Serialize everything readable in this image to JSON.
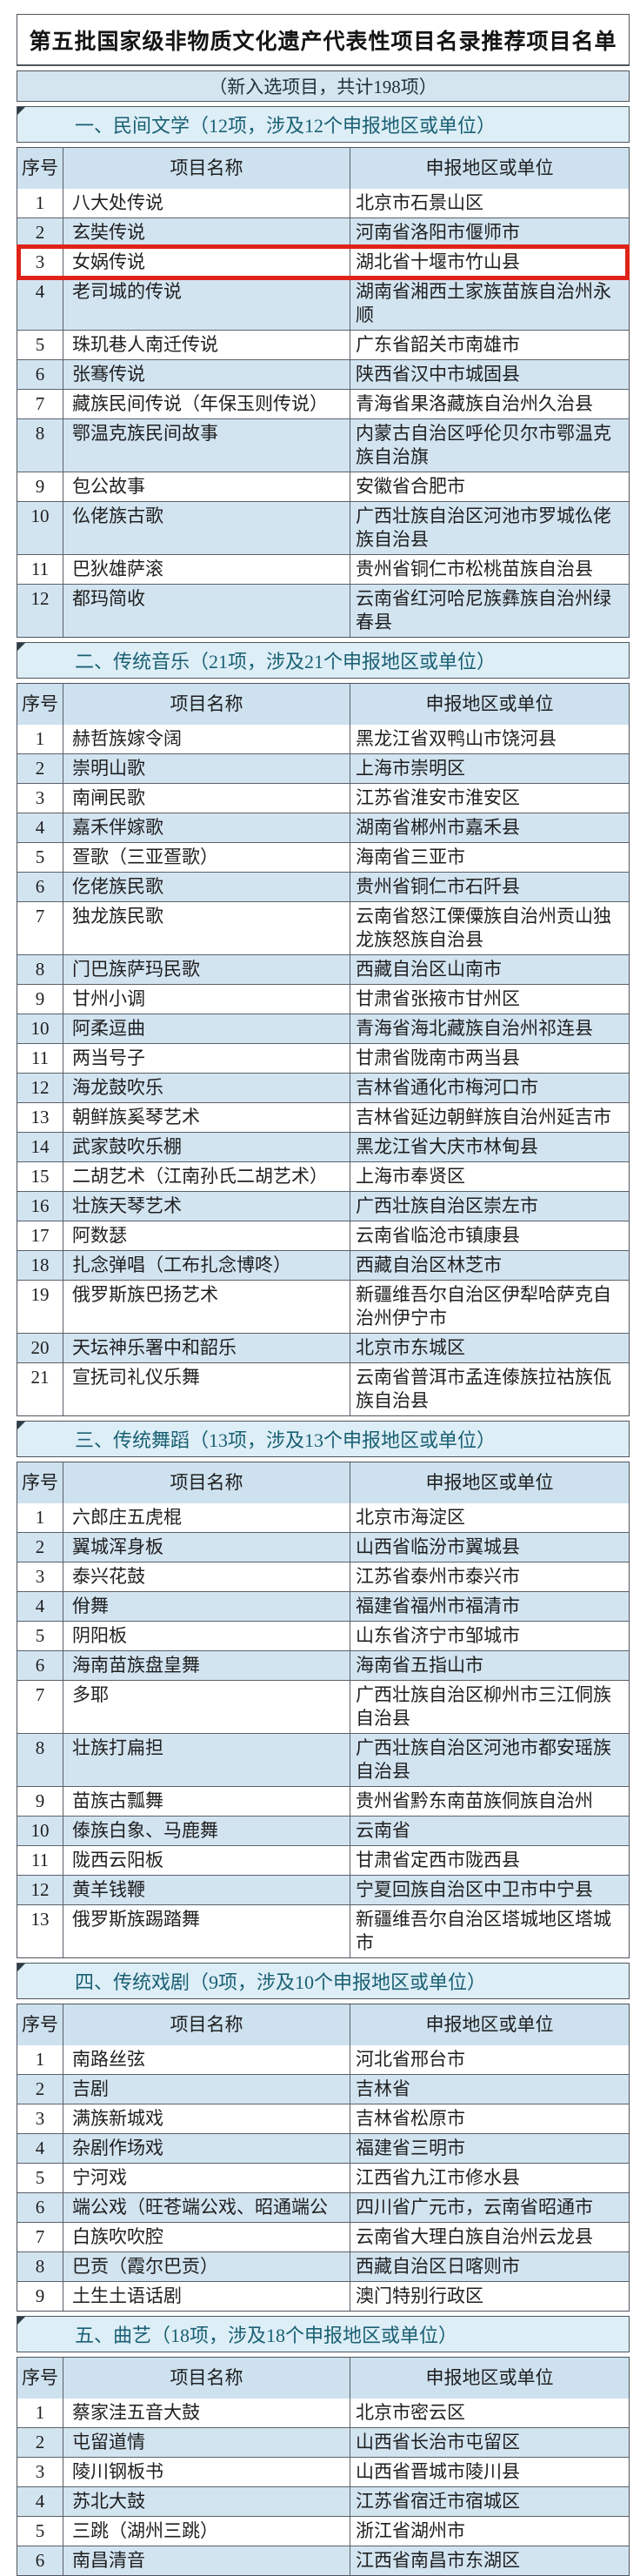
{
  "page": {
    "title": "第五批国家级非物质文化遗产代表性项目名录推荐项目名单",
    "subtitle": "（新入选项目，共计198项）",
    "colors": {
      "highlight_red": "#e02318",
      "alt_row_blue": "#d3e4f1",
      "table_header_blue": "#cde1ef",
      "section_header_bg": "#ddeef7",
      "section_header_text": "#1a6073"
    }
  },
  "table": {
    "columns": [
      "序号",
      "项目名称",
      "申报地区或单位"
    ]
  },
  "sections": [
    {
      "heading": "一、民间文学（12项，涉及12个申报地区或单位）",
      "rows": [
        {
          "no": "1",
          "name": "八大处传说",
          "region": "北京市石景山区"
        },
        {
          "no": "2",
          "name": "玄奘传说",
          "region": "河南省洛阳市偃师市"
        },
        {
          "no": "3",
          "name": "女娲传说",
          "region": "湖北省十堰市竹山县",
          "highlight": true
        },
        {
          "no": "4",
          "name": "老司城的传说",
          "region": "湖南省湘西土家族苗族自治州永顺"
        },
        {
          "no": "5",
          "name": "珠玑巷人南迁传说",
          "region": "广东省韶关市南雄市"
        },
        {
          "no": "6",
          "name": "张骞传说",
          "region": "陕西省汉中市城固县"
        },
        {
          "no": "7",
          "name": "藏族民间传说（年保玉则传说）",
          "region": "青海省果洛藏族自治州久治县"
        },
        {
          "no": "8",
          "name": "鄂温克族民间故事",
          "region": "内蒙古自治区呼伦贝尔市鄂温克族自治旗"
        },
        {
          "no": "9",
          "name": "包公故事",
          "region": "安徽省合肥市"
        },
        {
          "no": "10",
          "name": "仫佬族古歌",
          "region": "广西壮族自治区河池市罗城仫佬族自治县"
        },
        {
          "no": "11",
          "name": "巴狄雄萨滚",
          "region": "贵州省铜仁市松桃苗族自治县"
        },
        {
          "no": "12",
          "name": "都玛简收",
          "region": "云南省红河哈尼族彝族自治州绿春县"
        }
      ]
    },
    {
      "heading": "二、传统音乐（21项，涉及21个申报地区或单位）",
      "rows": [
        {
          "no": "1",
          "name": "赫哲族嫁令阔",
          "region": "黑龙江省双鸭山市饶河县"
        },
        {
          "no": "2",
          "name": "崇明山歌",
          "region": "上海市崇明区"
        },
        {
          "no": "3",
          "name": "南闸民歌",
          "region": "江苏省淮安市淮安区"
        },
        {
          "no": "4",
          "name": "嘉禾伴嫁歌",
          "region": "湖南省郴州市嘉禾县"
        },
        {
          "no": "5",
          "name": "疍歌（三亚疍歌）",
          "region": "海南省三亚市"
        },
        {
          "no": "6",
          "name": "仡佬族民歌",
          "region": "贵州省铜仁市石阡县"
        },
        {
          "no": "7",
          "name": "独龙族民歌",
          "region": "云南省怒江傈僳族自治州贡山独龙族怒族自治县"
        },
        {
          "no": "8",
          "name": "门巴族萨玛民歌",
          "region": "西藏自治区山南市"
        },
        {
          "no": "9",
          "name": "甘州小调",
          "region": "甘肃省张掖市甘州区"
        },
        {
          "no": "10",
          "name": "阿柔逗曲",
          "region": "青海省海北藏族自治州祁连县"
        },
        {
          "no": "11",
          "name": "两当号子",
          "region": "甘肃省陇南市两当县"
        },
        {
          "no": "12",
          "name": "海龙鼓吹乐",
          "region": "吉林省通化市梅河口市"
        },
        {
          "no": "13",
          "name": "朝鲜族奚琴艺术",
          "region": "吉林省延边朝鲜族自治州延吉市"
        },
        {
          "no": "14",
          "name": "武家鼓吹乐棚",
          "region": "黑龙江省大庆市林甸县"
        },
        {
          "no": "15",
          "name": "二胡艺术（江南孙氏二胡艺术）",
          "region": "上海市奉贤区"
        },
        {
          "no": "16",
          "name": "壮族天琴艺术",
          "region": "广西壮族自治区崇左市"
        },
        {
          "no": "17",
          "name": "阿数瑟",
          "region": "云南省临沧市镇康县"
        },
        {
          "no": "18",
          "name": "扎念弹唱（工布扎念博咚）",
          "region": "西藏自治区林芝市"
        },
        {
          "no": "19",
          "name": "俄罗斯族巴扬艺术",
          "region": "新疆维吾尔自治区伊犁哈萨克自治州伊宁市"
        },
        {
          "no": "20",
          "name": "天坛神乐署中和韶乐",
          "region": "北京市东城区"
        },
        {
          "no": "21",
          "name": "宣抚司礼仪乐舞",
          "region": "云南省普洱市孟连傣族拉祜族佤族自治县"
        }
      ]
    },
    {
      "heading": "三、传统舞蹈（13项，涉及13个申报地区或单位）",
      "rows": [
        {
          "no": "1",
          "name": "六郎庄五虎棍",
          "region": "北京市海淀区"
        },
        {
          "no": "2",
          "name": "翼城浑身板",
          "region": "山西省临汾市翼城县"
        },
        {
          "no": "3",
          "name": "泰兴花鼓",
          "region": "江苏省泰州市泰兴市"
        },
        {
          "no": "4",
          "name": "佾舞",
          "region": "福建省福州市福清市"
        },
        {
          "no": "5",
          "name": "阴阳板",
          "region": "山东省济宁市邹城市"
        },
        {
          "no": "6",
          "name": "海南苗族盘皇舞",
          "region": "海南省五指山市"
        },
        {
          "no": "7",
          "name": "多耶",
          "region": "广西壮族自治区柳州市三江侗族自治县"
        },
        {
          "no": "8",
          "name": "壮族打扁担",
          "region": "广西壮族自治区河池市都安瑶族自治县"
        },
        {
          "no": "9",
          "name": "苗族古瓢舞",
          "region": "贵州省黔东南苗族侗族自治州"
        },
        {
          "no": "10",
          "name": "傣族白象、马鹿舞",
          "region": "云南省"
        },
        {
          "no": "11",
          "name": "陇西云阳板",
          "region": "甘肃省定西市陇西县"
        },
        {
          "no": "12",
          "name": "黄羊钱鞭",
          "region": "宁夏回族自治区中卫市中宁县"
        },
        {
          "no": "13",
          "name": "俄罗斯族踢踏舞",
          "region": "新疆维吾尔自治区塔城地区塔城市"
        }
      ]
    },
    {
      "heading": "四、传统戏剧（9项，涉及10个申报地区或单位）",
      "rows": [
        {
          "no": "1",
          "name": "南路丝弦",
          "region": "河北省邢台市"
        },
        {
          "no": "2",
          "name": "吉剧",
          "region": "吉林省"
        },
        {
          "no": "3",
          "name": "满族新城戏",
          "region": "吉林省松原市"
        },
        {
          "no": "4",
          "name": "杂剧作场戏",
          "region": "福建省三明市"
        },
        {
          "no": "5",
          "name": "宁河戏",
          "region": "江西省九江市修水县"
        },
        {
          "no": "6",
          "name": "端公戏（旺苍端公戏、昭通端公",
          "region": "四川省广元市，云南省昭通市"
        },
        {
          "no": "7",
          "name": "白族吹吹腔",
          "region": "云南省大理白族自治州云龙县"
        },
        {
          "no": "8",
          "name": "巴贡（霞尔巴贡）",
          "region": "西藏自治区日喀则市"
        },
        {
          "no": "9",
          "name": "土生土语话剧",
          "region": "澳门特别行政区"
        }
      ]
    },
    {
      "heading": "五、曲艺（18项，涉及18个申报地区或单位）",
      "rows": [
        {
          "no": "1",
          "name": "蔡家洼五音大鼓",
          "region": "北京市密云区"
        },
        {
          "no": "2",
          "name": "屯留道情",
          "region": "山西省长治市屯留区"
        },
        {
          "no": "3",
          "name": "陵川钢板书",
          "region": "山西省晋城市陵川县"
        },
        {
          "no": "4",
          "name": "苏北大鼓",
          "region": "江苏省宿迁市宿城区"
        },
        {
          "no": "5",
          "name": "三跳（湖州三跳）",
          "region": "浙江省湖州市"
        },
        {
          "no": "6",
          "name": "南昌清音",
          "region": "江西省南昌市东湖区"
        }
      ]
    }
  ]
}
